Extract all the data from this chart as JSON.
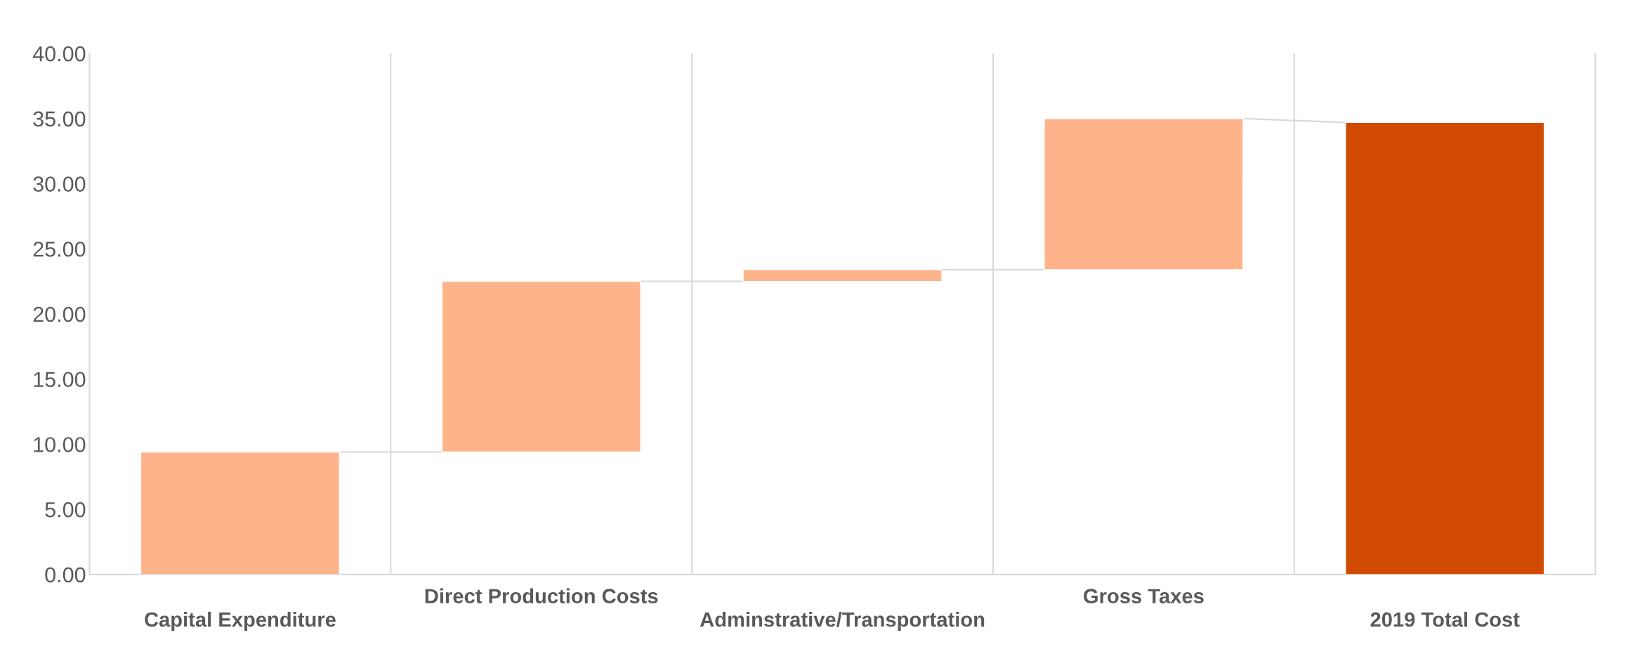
{
  "chart_data": {
    "type": "bar",
    "categories": [
      "Capital Expenditure",
      "Direct Production Costs",
      "Adminstrative/Transportation",
      "Gross Taxes",
      "2019 Total Cost"
    ],
    "values": [
      9.4,
      13.1,
      0.9,
      11.6,
      34.7
    ],
    "base": [
      0,
      9.4,
      22.5,
      23.4,
      0
    ],
    "colors": [
      "#ffb38a",
      "#ffb38a",
      "#ffb38a",
      "#ffb38a",
      "#d04a02"
    ],
    "ylim": [
      0,
      40
    ],
    "yticks": [
      {
        "value": 0,
        "label": "0.00"
      },
      {
        "value": 5,
        "label": "5.00"
      },
      {
        "value": 10,
        "label": "10.00"
      },
      {
        "value": 15,
        "label": "15.00"
      },
      {
        "value": 20,
        "label": "20.00"
      },
      {
        "value": 25,
        "label": "25.00"
      },
      {
        "value": 30,
        "label": "30.00"
      },
      {
        "value": 35,
        "label": "35.00"
      },
      {
        "value": 40,
        "label": "40.00"
      }
    ],
    "grid": "x"
  }
}
